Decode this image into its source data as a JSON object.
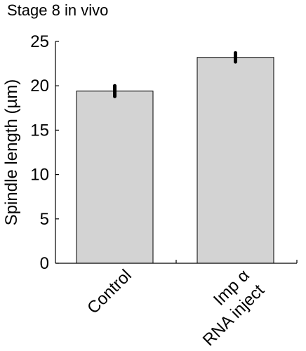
{
  "chart_data": {
    "type": "bar",
    "title": "Stage 8 in vivo",
    "ylabel": "Spindle length (µm)",
    "xlabel": "",
    "categories": [
      [
        "Control"
      ],
      [
        "Imp α",
        "RNA inject"
      ]
    ],
    "series": [
      {
        "values": [
          19.4,
          23.2
        ],
        "error": [
          0.6,
          0.5
        ]
      }
    ],
    "ylim": [
      0,
      25
    ],
    "yticks": [
      0,
      5,
      10,
      15,
      20,
      25
    ],
    "ytick_labels": [
      "0",
      "5",
      "10",
      "15",
      "20",
      "25"
    ],
    "grid": false,
    "legend": "none",
    "bar_color": "#d3d3d3",
    "bar_edge_color": "#000000",
    "errorbar_color": "#000000",
    "axis_color": "#000000"
  }
}
